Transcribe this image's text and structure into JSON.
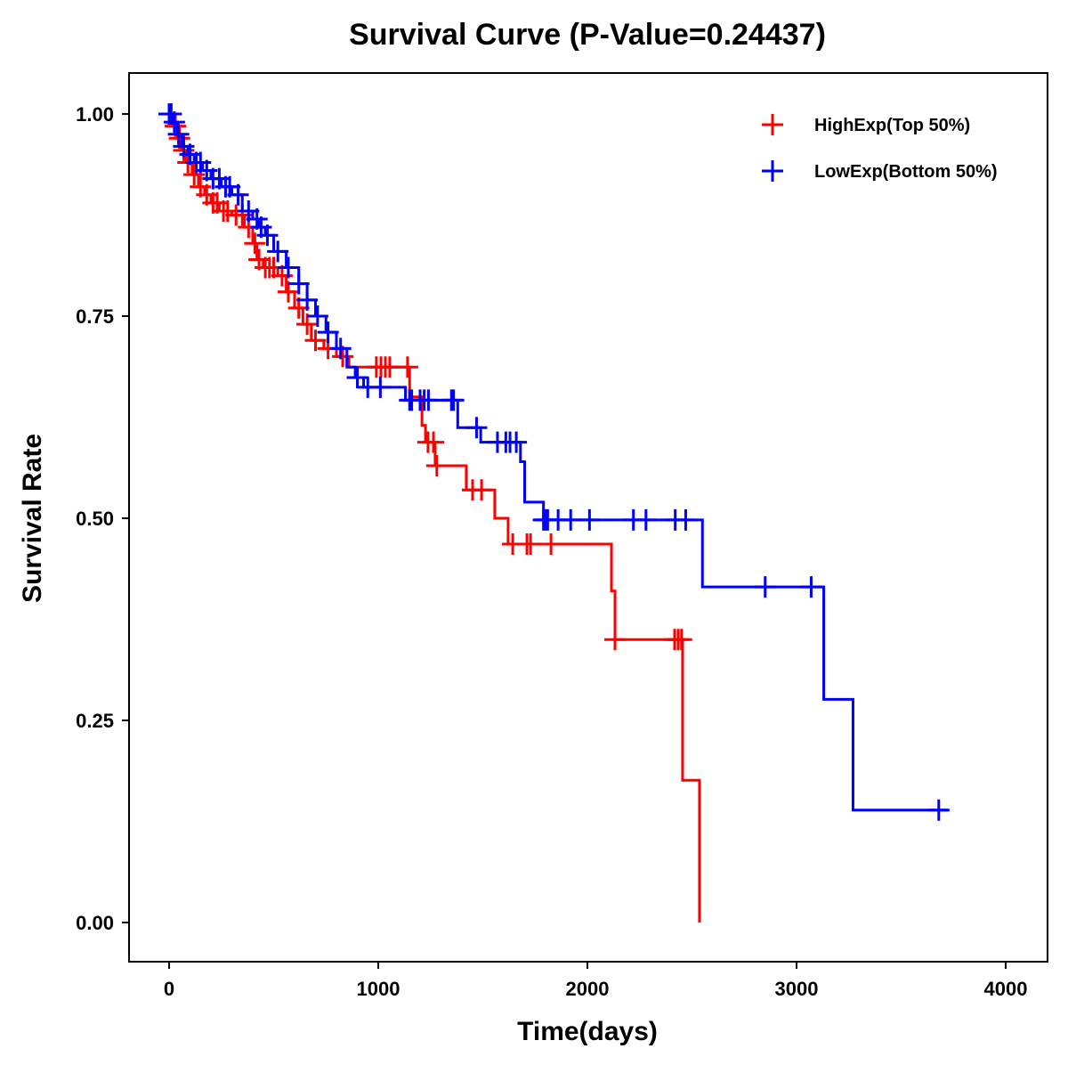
{
  "chart_data": {
    "type": "line",
    "subtype": "kaplan-meier",
    "title": "Survival Curve (P-Value=0.24437)",
    "xlabel": "Time(days)",
    "ylabel": "Survival Rate",
    "xlim": [
      -200,
      4200
    ],
    "ylim": [
      -0.05,
      1.05
    ],
    "xticks": [
      0,
      1000,
      2000,
      3000,
      4000
    ],
    "xtick_labels": [
      "0",
      "1000",
      "2000",
      "3000",
      "4000"
    ],
    "yticks": [
      0,
      0.25,
      0.5,
      0.75,
      1.0
    ],
    "ytick_labels": [
      "0.00",
      "0.25",
      "0.50",
      "0.75",
      "1.00"
    ],
    "grid": false,
    "legend_position": "top-right",
    "series": [
      {
        "name": "HighExp(Top 50%)",
        "color": "#ff0000",
        "end_time": 2536,
        "steps": [
          [
            0,
            1.0
          ],
          [
            20,
            0.985
          ],
          [
            40,
            0.97
          ],
          [
            60,
            0.955
          ],
          [
            80,
            0.94
          ],
          [
            110,
            0.925
          ],
          [
            140,
            0.91
          ],
          [
            170,
            0.9
          ],
          [
            200,
            0.89
          ],
          [
            240,
            0.88
          ],
          [
            300,
            0.875
          ],
          [
            360,
            0.86
          ],
          [
            400,
            0.84
          ],
          [
            420,
            0.82
          ],
          [
            450,
            0.81
          ],
          [
            520,
            0.8
          ],
          [
            560,
            0.78
          ],
          [
            600,
            0.76
          ],
          [
            640,
            0.74
          ],
          [
            680,
            0.72
          ],
          [
            740,
            0.71
          ],
          [
            800,
            0.7
          ],
          [
            860,
            0.687
          ],
          [
            1150,
            0.65
          ],
          [
            1209,
            0.615
          ],
          [
            1226,
            0.594
          ],
          [
            1272,
            0.565
          ],
          [
            1421,
            0.535
          ],
          [
            1557,
            0.5
          ],
          [
            1621,
            0.468
          ],
          [
            2115,
            0.41
          ],
          [
            2132,
            0.35
          ],
          [
            2455,
            0.176
          ],
          [
            2536,
            0.0
          ]
        ],
        "censored": [
          30,
          50,
          70,
          90,
          120,
          150,
          180,
          210,
          230,
          260,
          280,
          320,
          350,
          380,
          410,
          430,
          460,
          480,
          500,
          540,
          570,
          620,
          660,
          700,
          760,
          830,
          991,
          1013,
          1034,
          1055,
          1140,
          1238,
          1264,
          1280,
          1451,
          1494,
          1643,
          1711,
          1728,
          1826,
          2132,
          2417,
          2434,
          2450
        ]
      },
      {
        "name": "LowExp(Bottom 50%)",
        "color": "#0000ff",
        "end_time": 3723,
        "steps": [
          [
            0,
            1.0
          ],
          [
            20,
            0.99
          ],
          [
            40,
            0.975
          ],
          [
            60,
            0.96
          ],
          [
            90,
            0.95
          ],
          [
            120,
            0.94
          ],
          [
            160,
            0.93
          ],
          [
            200,
            0.92
          ],
          [
            250,
            0.91
          ],
          [
            300,
            0.9
          ],
          [
            350,
            0.88
          ],
          [
            400,
            0.87
          ],
          [
            430,
            0.86
          ],
          [
            460,
            0.85
          ],
          [
            500,
            0.83
          ],
          [
            560,
            0.81
          ],
          [
            620,
            0.79
          ],
          [
            660,
            0.77
          ],
          [
            700,
            0.75
          ],
          [
            750,
            0.73
          ],
          [
            800,
            0.71
          ],
          [
            850,
            0.687
          ],
          [
            890,
            0.674
          ],
          [
            930,
            0.662
          ],
          [
            1130,
            0.646
          ],
          [
            1380,
            0.612
          ],
          [
            1490,
            0.594
          ],
          [
            1680,
            0.57
          ],
          [
            1700,
            0.52
          ],
          [
            1790,
            0.498
          ],
          [
            2550,
            0.415
          ],
          [
            3130,
            0.276
          ],
          [
            3270,
            0.139
          ]
        ],
        "censored": [
          0,
          5,
          10,
          25,
          45,
          70,
          100,
          130,
          150,
          180,
          210,
          240,
          270,
          290,
          330,
          380,
          420,
          440,
          470,
          520,
          570,
          620,
          660,
          710,
          760,
          820,
          900,
          950,
          1010,
          1150,
          1160,
          1200,
          1220,
          1240,
          1350,
          1360,
          1470,
          1570,
          1610,
          1630,
          1660,
          1790,
          1800,
          1810,
          1860,
          1920,
          2010,
          2220,
          2280,
          2420,
          2470,
          2850,
          3070,
          3680
        ]
      }
    ]
  }
}
